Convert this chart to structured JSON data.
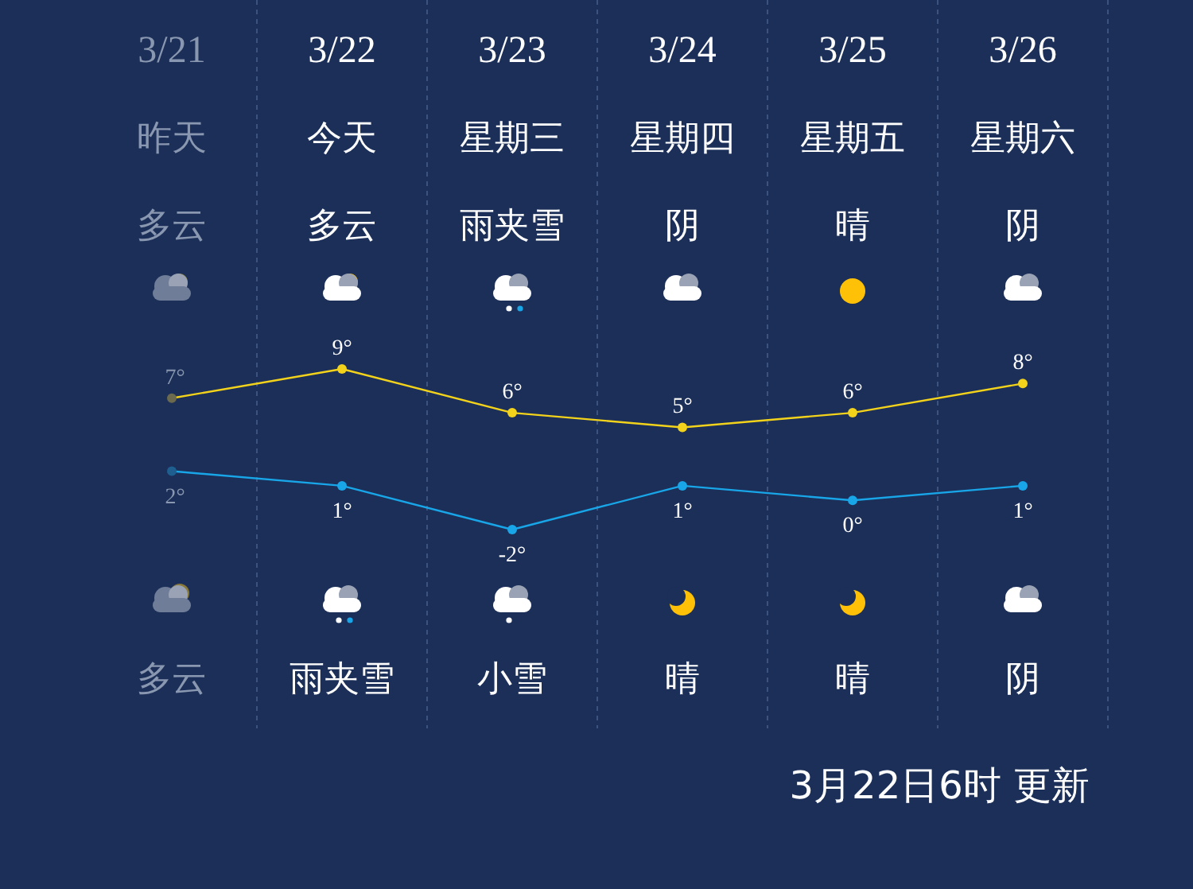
{
  "chart_data": {
    "type": "line",
    "categories": [
      "3/21",
      "3/22",
      "3/23",
      "3/24",
      "3/25",
      "3/26"
    ],
    "series": [
      {
        "color": "#f2d21b",
        "colors": [
          "#6b6a4e",
          "#f2d21b",
          "#f2d21b",
          "#f2d21b",
          "#f2d21b",
          "#f2d21b"
        ],
        "values": [
          7,
          9,
          6,
          5,
          6,
          8
        ],
        "value_labels": [
          "7°",
          "9°",
          "6°",
          "5°",
          "6°",
          "8°"
        ]
      },
      {
        "color": "#19a6e8",
        "colors": [
          "#1f5f8f",
          "#19a6e8",
          "#19a6e8",
          "#19a6e8",
          "#19a6e8",
          "#19a6e8"
        ],
        "values": [
          2,
          1,
          -2,
          1,
          0,
          1
        ],
        "value_labels": [
          "2°",
          "1°",
          "-2°",
          "1°",
          "0°",
          "1°"
        ]
      }
    ],
    "marker": "circle",
    "grid": "x",
    "annotations": [
      "昨天",
      "今天",
      "星期三",
      "星期四",
      "星期五",
      "星期六",
      "多云",
      "多云",
      "雨夹雪",
      "阴",
      "晴",
      "阴",
      "多云",
      "雨夹雪",
      "小雪",
      "晴",
      "晴",
      "阴",
      "3月22日6时 更新"
    ]
  }
}
